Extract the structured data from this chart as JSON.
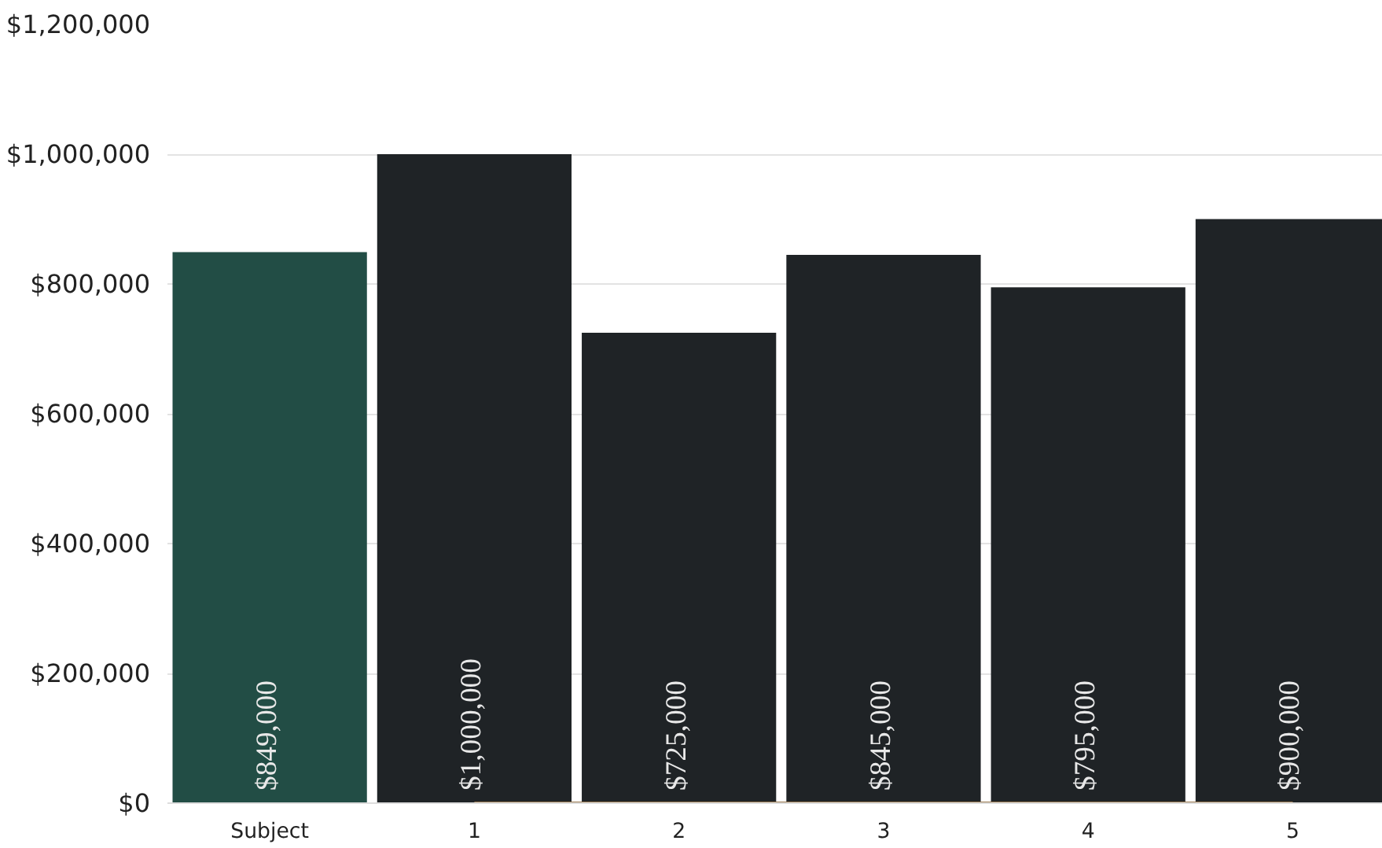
{
  "chart_data": {
    "type": "bar",
    "categories": [
      "Subject",
      "1",
      "2",
      "3",
      "4",
      "5"
    ],
    "series": [
      {
        "colors": [
          "#224d45",
          "#1f2326",
          "#1f2326",
          "#1f2326",
          "#1f2326",
          "#1f2326"
        ],
        "values": [
          849000,
          1000000,
          725000,
          845000,
          795000,
          900000
        ],
        "value_labels": [
          "$849,000",
          "$1,000,000",
          "$725,000",
          "$845,000",
          "$795,000",
          "$900,000"
        ]
      },
      {
        "type": "line",
        "color": "#9a7a50",
        "values": [
          null,
          0,
          0,
          0,
          0,
          0
        ]
      }
    ],
    "ylim": [
      0,
      1200000
    ],
    "yticks": [
      {
        "value": 0,
        "label": "$0"
      },
      {
        "value": 200000,
        "label": "$200,000"
      },
      {
        "value": 400000,
        "label": "$400,000"
      },
      {
        "value": 600000,
        "label": "$600,000"
      },
      {
        "value": 800000,
        "label": "$800,000"
      },
      {
        "value": 1000000,
        "label": "$1,000,000"
      },
      {
        "value": 1200000,
        "label": "$1,200,000"
      }
    ],
    "grid": "y"
  }
}
